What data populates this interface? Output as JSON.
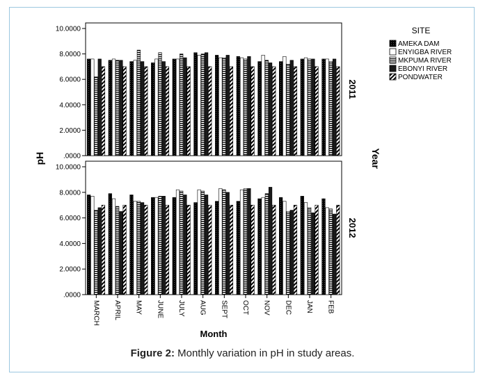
{
  "figure": {
    "caption_label": "Figure 2:",
    "caption_text": " Monthly variation in pH in study areas."
  },
  "chart_data": {
    "type": "bar",
    "ylabel": "pH",
    "xlabel": "Month",
    "row_axis_label": "Year",
    "legend_title": "SITE",
    "legend_position": "top-right",
    "ylim": [
      0,
      10
    ],
    "y_ticks": [
      ".0000",
      "2.0000",
      "4.0000",
      "6.0000",
      "8.0000",
      "10.0000"
    ],
    "categories": [
      "MARCH",
      "APRIL",
      "MAY",
      "JUNE",
      "JULY",
      "AUG",
      "SEPT",
      "OCT",
      "NOV",
      "DEC",
      "JAN",
      "FEB"
    ],
    "series_names": [
      "AMEKA DAM",
      "ENYIGBA RIVER",
      "MKPUMA RIVER",
      "EBONYI RIVER",
      "PONDWATER"
    ],
    "panels": [
      {
        "label": "2011",
        "series": [
          {
            "name": "AMEKA DAM",
            "values": [
              7.6,
              7.5,
              7.4,
              7.3,
              7.6,
              8.1,
              7.9,
              7.8,
              7.4,
              7.4,
              7.6,
              7.6
            ]
          },
          {
            "name": "ENYIGBA RIVER",
            "values": [
              7.6,
              7.6,
              7.5,
              7.6,
              7.6,
              7.9,
              7.7,
              7.7,
              7.9,
              7.8,
              7.7,
              7.6
            ]
          },
          {
            "name": "MKPUMA RIVER",
            "values": [
              6.2,
              7.5,
              8.3,
              8.1,
              8.0,
              8.0,
              7.7,
              7.6,
              7.5,
              7.2,
              7.6,
              7.4
            ]
          },
          {
            "name": "EBONYI RIVER",
            "values": [
              7.6,
              7.5,
              7.4,
              7.4,
              7.7,
              8.1,
              7.9,
              7.8,
              7.3,
              7.5,
              7.6,
              7.6
            ]
          },
          {
            "name": "PONDWATER",
            "values": [
              7.0,
              7.0,
              7.0,
              7.0,
              7.0,
              7.0,
              7.0,
              7.0,
              7.0,
              7.0,
              7.0,
              7.0
            ]
          }
        ]
      },
      {
        "label": "2012",
        "series": [
          {
            "name": "AMEKA DAM",
            "values": [
              7.8,
              7.9,
              7.8,
              7.6,
              7.6,
              7.2,
              7.3,
              7.3,
              7.5,
              7.6,
              7.7,
              7.5
            ]
          },
          {
            "name": "ENYIGBA RIVER",
            "values": [
              7.7,
              7.5,
              7.3,
              7.6,
              8.2,
              8.2,
              8.3,
              8.2,
              7.6,
              7.3,
              7.2,
              6.8
            ]
          },
          {
            "name": "MKPUMA RIVER",
            "values": [
              6.6,
              6.9,
              7.3,
              7.7,
              8.1,
              8.1,
              8.2,
              8.3,
              7.9,
              6.5,
              6.8,
              6.7
            ]
          },
          {
            "name": "EBONYI RIVER",
            "values": [
              6.8,
              6.5,
              7.2,
              7.7,
              7.8,
              7.8,
              8.0,
              8.3,
              8.4,
              6.6,
              6.4,
              6.3
            ]
          },
          {
            "name": "PONDWATER",
            "values": [
              7.0,
              7.0,
              7.0,
              7.0,
              7.0,
              7.0,
              7.0,
              7.0,
              7.0,
              7.0,
              7.0,
              7.0
            ]
          }
        ]
      }
    ]
  }
}
